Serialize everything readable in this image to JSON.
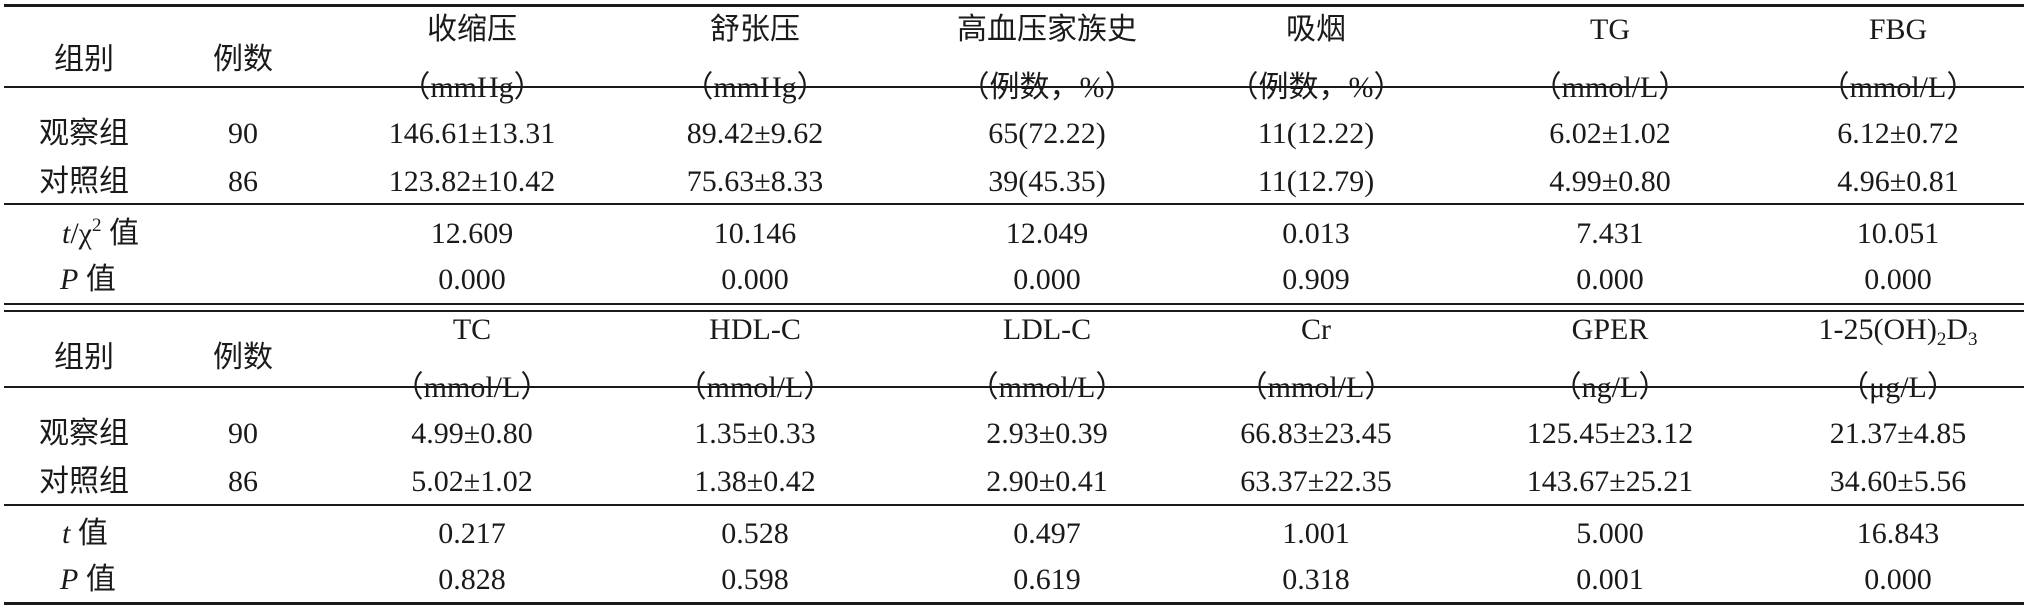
{
  "top": {
    "group_label": "组别",
    "cases_label": "例数",
    "headers": [
      {
        "name": "收缩压",
        "unit": "（mmHg）"
      },
      {
        "name": "舒张压",
        "unit": "（mmHg）"
      },
      {
        "name": "高血压家族史",
        "unit": "（例数，%）"
      },
      {
        "name": "吸烟",
        "unit": "（例数，%）"
      },
      {
        "name": "TG",
        "unit": "（mmol/L）"
      },
      {
        "name": "FBG",
        "unit": "（mmol/L）"
      }
    ],
    "rows": [
      {
        "group": "观察组",
        "n": "90",
        "values": [
          "146.61±13.31",
          "89.42±9.62",
          "65(72.22)",
          "11(12.22)",
          "6.02±1.02",
          "6.12±0.72"
        ]
      },
      {
        "group": "对照组",
        "n": "86",
        "values": [
          "123.82±10.42",
          "75.63±8.33",
          "39(45.35)",
          "11(12.79)",
          "4.99±0.80",
          "4.96±0.81"
        ]
      }
    ],
    "stat_label_t": "t",
    "stat_label_chi": "/χ",
    "stat_label_sup": "2",
    "stat_label_suffix": " 值",
    "stat_values": [
      "12.609",
      "10.146",
      "12.049",
      "0.013",
      "7.431",
      "10.051"
    ],
    "p_label_p": "P",
    "p_label_suffix": " 值",
    "p_values": [
      "0.000",
      "0.000",
      "0.000",
      "0.909",
      "0.000",
      "0.000"
    ]
  },
  "bottom": {
    "group_label": "组别",
    "cases_label": "例数",
    "headers": [
      {
        "name": "TC",
        "unit": "（mmol/L）"
      },
      {
        "name": "HDL-C",
        "unit": "（mmol/L）"
      },
      {
        "name": "LDL-C",
        "unit": "（mmol/L）"
      },
      {
        "name": "Cr",
        "unit": "（mmol/L）"
      },
      {
        "name": "GPER",
        "unit": "（ng/L）"
      },
      {
        "name_pre": "1-25(OH)",
        "name_sub1": "2",
        "name_mid": "D",
        "name_sub2": "3",
        "unit": "（μg/L）"
      }
    ],
    "rows": [
      {
        "group": "观察组",
        "n": "90",
        "values": [
          "4.99±0.80",
          "1.35±0.33",
          "2.93±0.39",
          "66.83±23.45",
          "125.45±23.12",
          "21.37±4.85"
        ]
      },
      {
        "group": "对照组",
        "n": "86",
        "values": [
          "5.02±1.02",
          "1.38±0.42",
          "2.90±0.41",
          "63.37±22.35",
          "143.67±25.21",
          "34.60±5.56"
        ]
      }
    ],
    "stat_label_t": "t",
    "stat_label_suffix": " 值",
    "stat_values": [
      "0.217",
      "0.528",
      "0.497",
      "1.001",
      "5.000",
      "16.843"
    ],
    "p_label_p": "P",
    "p_label_suffix": " 值",
    "p_values": [
      "0.828",
      "0.598",
      "0.619",
      "0.318",
      "0.001",
      "0.000"
    ]
  }
}
